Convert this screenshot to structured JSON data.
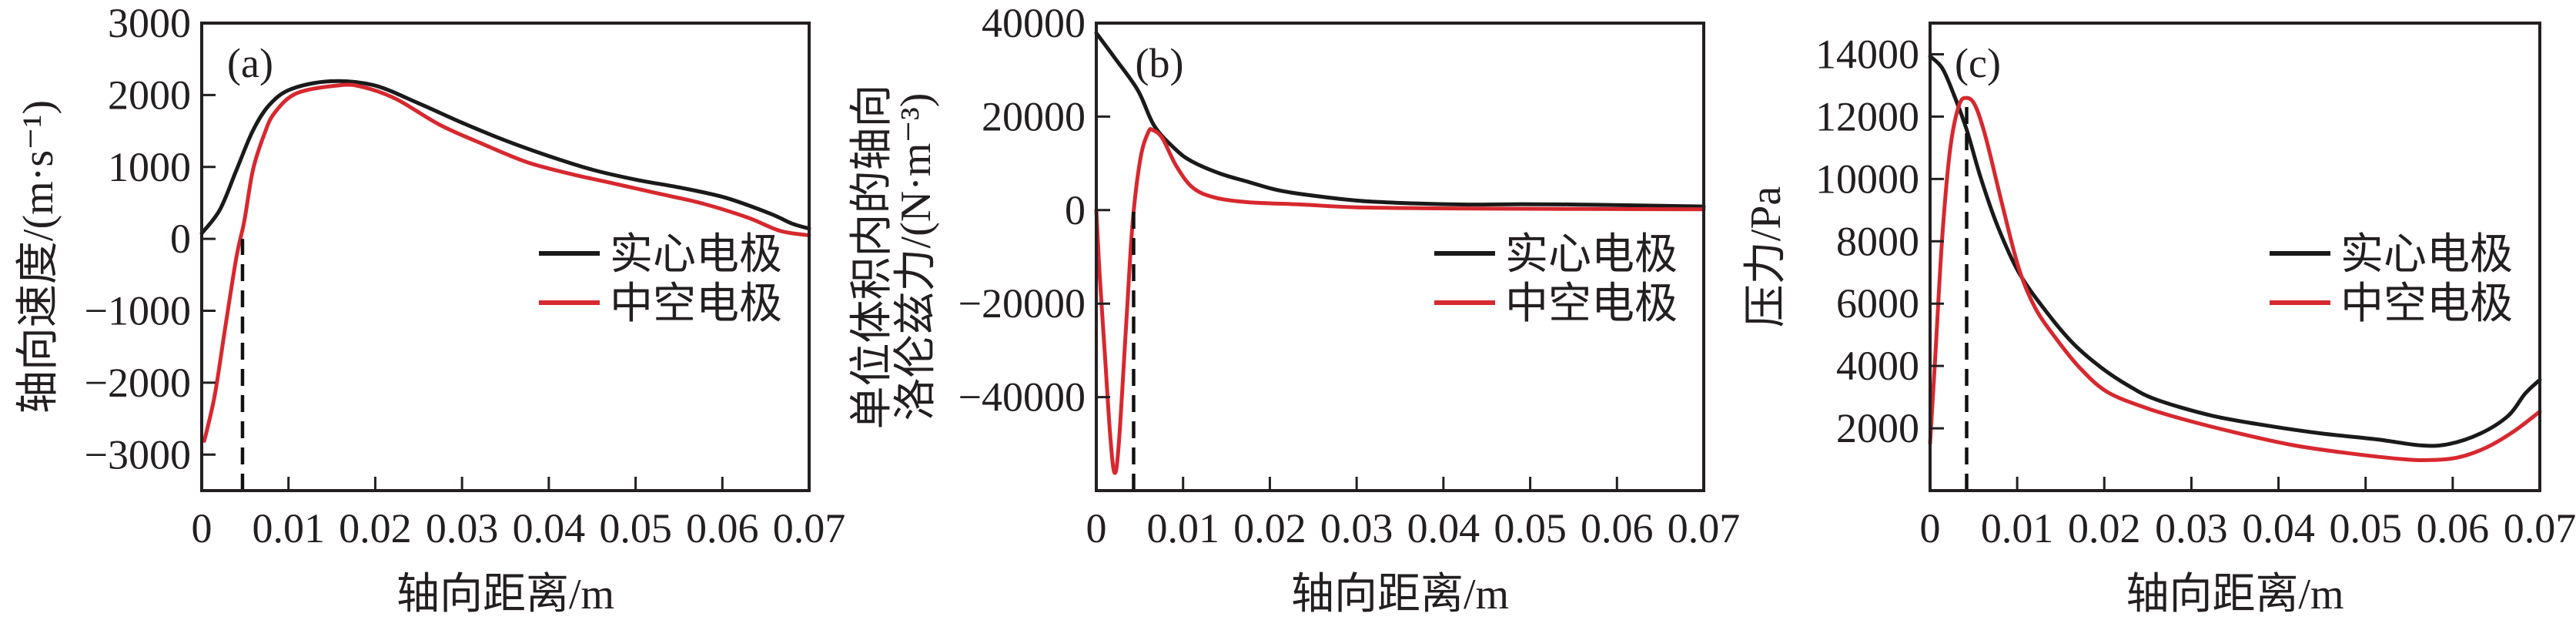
{
  "legend": {
    "series": [
      {
        "name": "实心电极",
        "color": "#1a1a1a"
      },
      {
        "name": "中空电极",
        "color": "#d7282f"
      }
    ]
  },
  "chart_data": [
    {
      "type": "line",
      "panel_label": "(a)",
      "xlabel": "轴向距离/m",
      "ylabel": [
        "轴向速度/(m·s⁻¹)"
      ],
      "xlim": [
        0,
        0.07
      ],
      "ylim": [
        -3500,
        3000
      ],
      "xticks": [
        0,
        0.01,
        0.02,
        0.03,
        0.04,
        0.05,
        0.06,
        0.07
      ],
      "xtick_labels": [
        "0",
        "0.01",
        "0.02",
        "0.03",
        "0.04",
        "0.05",
        "0.06",
        "0.07"
      ],
      "yticks": [
        -3000,
        -2000,
        -1000,
        0,
        1000,
        2000,
        3000
      ],
      "ytick_labels": [
        "−3000",
        "−2000",
        "−1000",
        "0",
        "1000",
        "2000",
        "3000"
      ],
      "marker_line": {
        "x": 0.0047,
        "y_top": 0,
        "style": "dashed"
      },
      "legend_position": "center-right",
      "series": [
        {
          "name": "实心电极",
          "x": [
            0,
            0.0021,
            0.004,
            0.0059,
            0.0078,
            0.0103,
            0.0148,
            0.0198,
            0.0249,
            0.03,
            0.035,
            0.0401,
            0.0452,
            0.0502,
            0.0553,
            0.0604,
            0.0655,
            0.068,
            0.07
          ],
          "y": [
            77,
            407,
            956,
            1505,
            1863,
            2082,
            2192,
            2137,
            1890,
            1615,
            1368,
            1148,
            956,
            819,
            709,
            571,
            352,
            214,
            143
          ]
        },
        {
          "name": "中空电极",
          "x": [
            0.0003,
            0.0015,
            0.0027,
            0.004,
            0.0049,
            0.0059,
            0.0072,
            0.0084,
            0.011,
            0.016,
            0.0186,
            0.0224,
            0.0274,
            0.0325,
            0.0375,
            0.0426,
            0.0477,
            0.0528,
            0.0578,
            0.0629,
            0.0667,
            0.07
          ],
          "y": [
            -2808,
            -2176,
            -1242,
            -253,
            242,
            956,
            1451,
            1753,
            2027,
            2137,
            2110,
            1945,
            1588,
            1313,
            1066,
            901,
            764,
            626,
            489,
            297,
            110,
            49
          ]
        }
      ]
    },
    {
      "type": "line",
      "panel_label": "(b)",
      "xlabel": "轴向距离/m",
      "ylabel": [
        "单位体积内的轴向",
        "洛伦兹力/(N·m⁻³)"
      ],
      "xlim": [
        0,
        0.07
      ],
      "ylim": [
        -60000,
        40000
      ],
      "xticks": [
        0,
        0.01,
        0.02,
        0.03,
        0.04,
        0.05,
        0.06,
        0.07
      ],
      "xtick_labels": [
        "0",
        "0.01",
        "0.02",
        "0.03",
        "0.04",
        "0.05",
        "0.06",
        "0.07"
      ],
      "yticks": [
        -40000,
        -20000,
        0,
        20000,
        40000
      ],
      "ytick_labels": [
        "−40000",
        "−20000",
        "0",
        "20000",
        "40000"
      ],
      "marker_line": {
        "x": 0.0043,
        "y_top": 0,
        "style": "dashed"
      },
      "legend_position": "center-right",
      "series": [
        {
          "name": "实心电极",
          "x": [
            0,
            0.0022,
            0.0048,
            0.0067,
            0.0092,
            0.0111,
            0.0143,
            0.0174,
            0.0206,
            0.0238,
            0.0301,
            0.0364,
            0.0428,
            0.049,
            0.0554,
            0.0618,
            0.07
          ],
          "y": [
            37881,
            32372,
            25593,
            17966,
            12881,
            10339,
            7797,
            6102,
            4407,
            3390,
            2034,
            1441,
            1186,
            1271,
            1186,
            1017,
            763
          ]
        },
        {
          "name": "中空电极",
          "x": [
            0,
            0.0004,
            0.001,
            0.0016,
            0.0021,
            0.0026,
            0.0035,
            0.0042,
            0.0051,
            0.006,
            0.0065,
            0.0076,
            0.0092,
            0.0111,
            0.0136,
            0.0174,
            0.0238,
            0.0301,
            0.0428,
            0.07
          ],
          "y": [
            0,
            -14237,
            -31186,
            -48136,
            -56186,
            -49830,
            -22712,
            -2373,
            11186,
            16695,
            17119,
            15424,
            9492,
            4831,
            2712,
            1695,
            1186,
            593,
            339,
            170
          ]
        }
      ]
    },
    {
      "type": "line",
      "panel_label": "(c)",
      "xlabel": "轴向距离/m",
      "ylabel": [
        "压力/Pa"
      ],
      "xlim": [
        0,
        0.07
      ],
      "ylim": [
        0,
        15000
      ],
      "xticks": [
        0,
        0.01,
        0.02,
        0.03,
        0.04,
        0.05,
        0.06,
        0.07
      ],
      "xtick_labels": [
        "0",
        "0.01",
        "0.02",
        "0.03",
        "0.04",
        "0.05",
        "0.06",
        "0.07"
      ],
      "yticks": [
        2000,
        4000,
        6000,
        8000,
        10000,
        12000,
        14000
      ],
      "ytick_labels": [
        "2000",
        "4000",
        "6000",
        "8000",
        "10000",
        "12000",
        "14000"
      ],
      "marker_line": {
        "x": 0.0042,
        "y_top": 12600,
        "style": "dashed"
      },
      "legend_position": "center-right",
      "series": [
        {
          "name": "实心电极",
          "x": [
            0,
            0.0014,
            0.0027,
            0.0042,
            0.0058,
            0.0077,
            0.0102,
            0.0134,
            0.0165,
            0.0197,
            0.0228,
            0.026,
            0.0323,
            0.0386,
            0.0449,
            0.0513,
            0.0563,
            0.0595,
            0.0632,
            0.0664,
            0.0683,
            0.07
          ],
          "y": [
            13936,
            13554,
            12726,
            11580,
            10051,
            8522,
            6994,
            5720,
            4701,
            3936,
            3363,
            2917,
            2408,
            2089,
            1834,
            1643,
            1452,
            1490,
            1834,
            2408,
            3108,
            3554
          ]
        },
        {
          "name": "中空电极",
          "x": [
            0,
            0.0006,
            0.0014,
            0.0023,
            0.0033,
            0.0042,
            0.0052,
            0.0064,
            0.0083,
            0.0102,
            0.0121,
            0.0146,
            0.0172,
            0.0203,
            0.0247,
            0.0292,
            0.0355,
            0.0418,
            0.0481,
            0.0544,
            0.0576,
            0.0607,
            0.0639,
            0.067,
            0.07
          ],
          "y": [
            1516,
            4318,
            8140,
            10943,
            12344,
            12599,
            12344,
            11325,
            9159,
            7121,
            5847,
            4828,
            3936,
            3172,
            2662,
            2280,
            1834,
            1452,
            1197,
            1006,
            981,
            1070,
            1388,
            1898,
            2535
          ]
        }
      ]
    }
  ]
}
